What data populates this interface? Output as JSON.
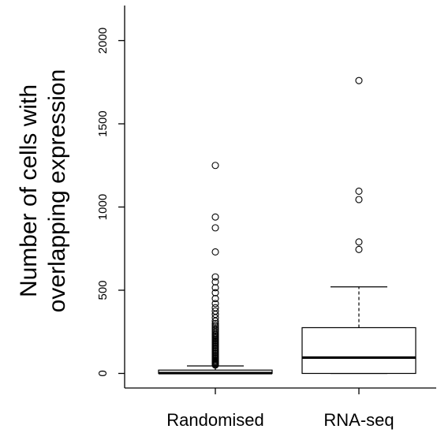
{
  "chart_data": {
    "type": "boxplot",
    "title": "",
    "xlabel": "",
    "ylabel_lines": [
      "Number of cells with",
      "overlapping expression"
    ],
    "ylim": [
      -80,
      2200
    ],
    "yticks": [
      0,
      500,
      1000,
      1500,
      2000
    ],
    "ytick_labels": [
      "0",
      "500",
      "1000",
      "1500",
      "2000"
    ],
    "categories": [
      "Randomised",
      "RNA-seq"
    ],
    "boxes": [
      {
        "label": "Randomised",
        "whisker_low": 0,
        "q1": 0,
        "median": 2,
        "q3": 20,
        "whisker_high": 45,
        "outliers": [
          1250,
          940,
          875,
          730,
          580,
          550,
          515,
          485,
          450,
          420,
          395,
          375,
          355,
          335,
          315,
          300,
          290,
          280,
          270,
          260,
          250,
          240,
          232,
          225,
          218,
          211,
          204,
          197,
          190,
          183,
          176,
          169,
          162,
          155,
          148,
          141,
          134,
          127,
          120,
          113,
          106,
          99,
          92,
          85,
          78,
          72,
          66,
          60,
          55,
          50
        ]
      },
      {
        "label": "RNA-seq",
        "whisker_low": 0,
        "q1": 0,
        "median": 95,
        "q3": 275,
        "whisker_high": 520,
        "outliers": [
          1760,
          1095,
          1045,
          790,
          745
        ]
      }
    ],
    "grid": false,
    "legend": "none",
    "colors": {
      "box_stroke": "#000000",
      "box_fill": "#ffffff",
      "outlier_stroke": "#000000"
    }
  }
}
